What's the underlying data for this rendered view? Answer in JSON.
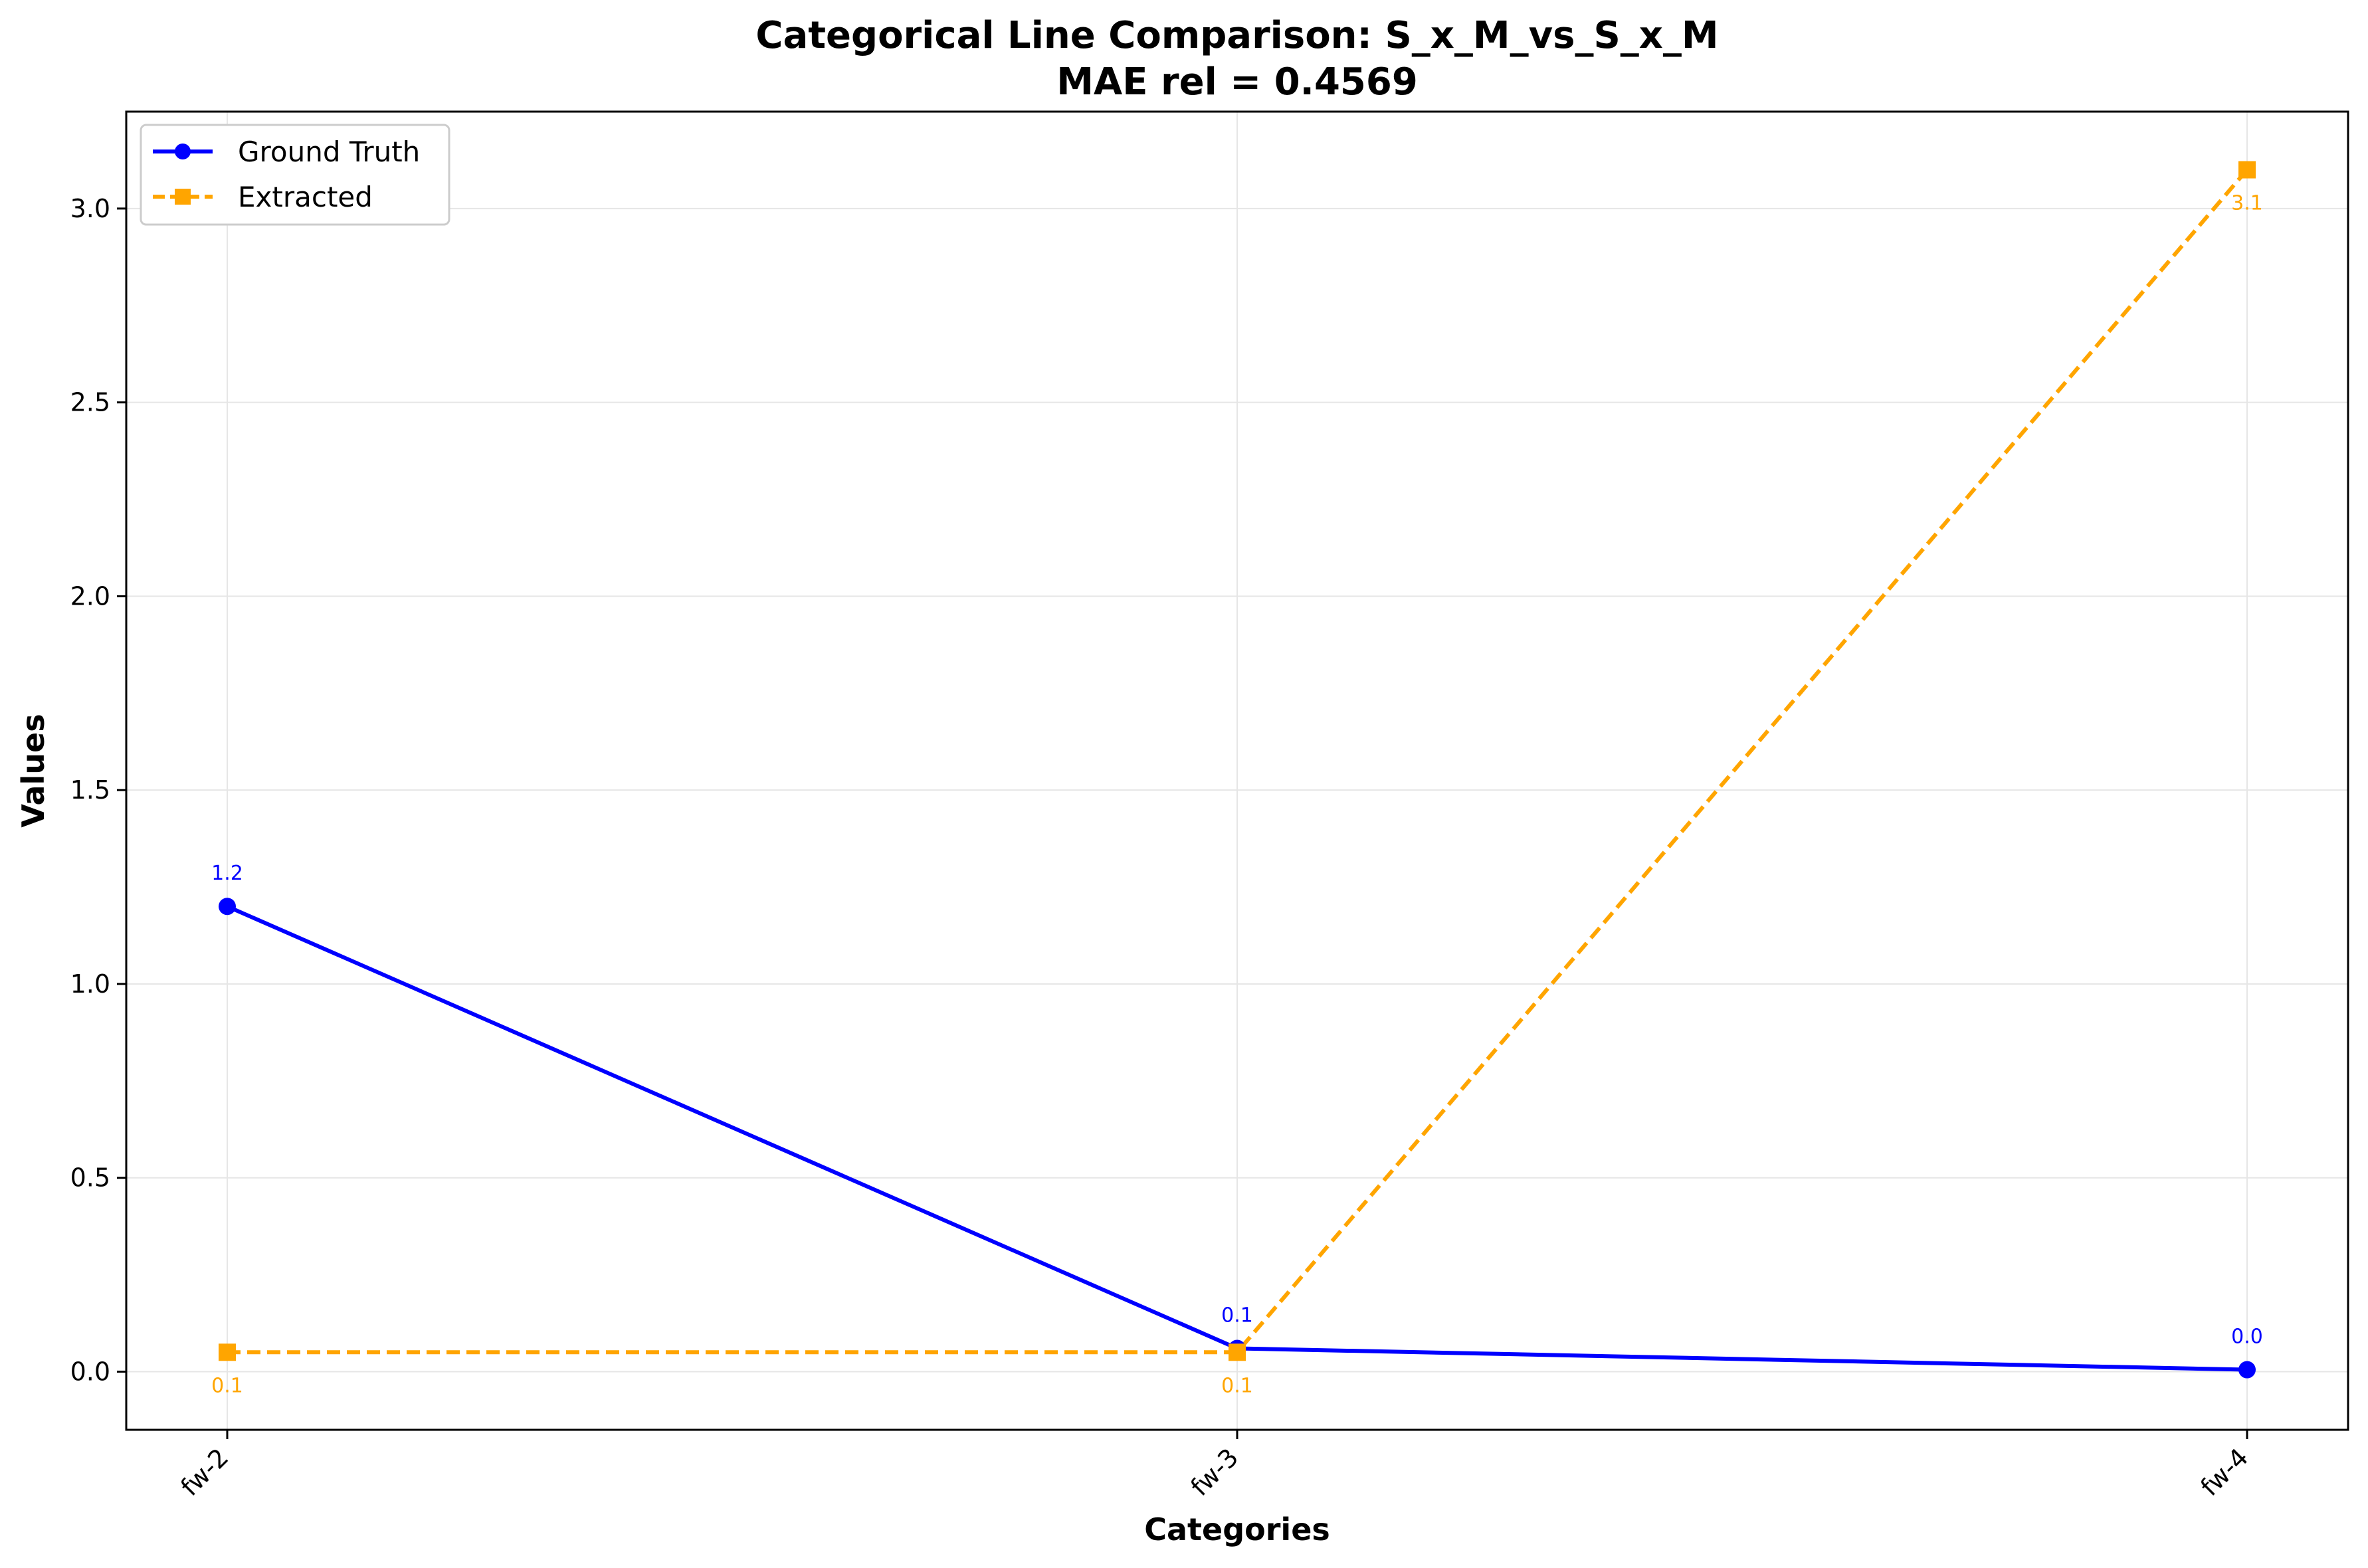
{
  "chart_data": {
    "type": "line",
    "title": "Categorical Line Comparison: S_x_M_vs_S_x_M",
    "subtitle": "MAE rel = 0.4569",
    "xlabel": "Categories",
    "ylabel": "Values",
    "categories": [
      "fw-2",
      "fw-3",
      "fw-4"
    ],
    "ylim": [
      -0.15,
      3.25
    ],
    "yticks": [
      0.0,
      0.5,
      1.0,
      1.5,
      2.0,
      2.5,
      3.0
    ],
    "ytick_labels": [
      "0.0",
      "0.5",
      "1.0",
      "1.5",
      "2.0",
      "2.5",
      "3.0"
    ],
    "grid": true,
    "legend_position": "top-left",
    "series": [
      {
        "name": "Ground Truth",
        "values": [
          1.2,
          0.06,
          0.005
        ],
        "data_labels": [
          "1.2",
          "0.1",
          "0.0"
        ],
        "color": "#0000ff",
        "marker": "circle",
        "linestyle": "solid"
      },
      {
        "name": "Extracted",
        "values": [
          0.05,
          0.05,
          3.1
        ],
        "data_labels": [
          "0.1",
          "0.1",
          "3.1"
        ],
        "color": "#ffa500",
        "marker": "square",
        "linestyle": "dashed"
      }
    ]
  }
}
